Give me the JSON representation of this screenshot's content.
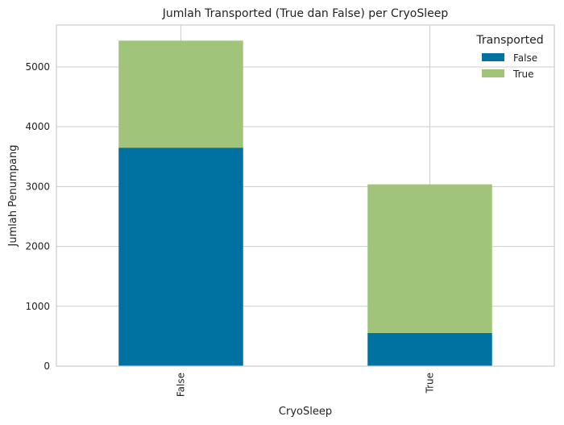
{
  "chart_data": {
    "type": "bar",
    "stacked": true,
    "title": "Jumlah Transported (True dan False) per CryoSleep",
    "xlabel": "CryoSleep",
    "ylabel": "Jumlah Penumpang",
    "categories": [
      "False",
      "True"
    ],
    "series": [
      {
        "name": "False",
        "values": [
          3650,
          554
        ],
        "color": "#0072A2"
      },
      {
        "name": "True",
        "values": [
          1789,
          2483
        ],
        "color": "#A0C47A"
      }
    ],
    "ylim": [
      0,
      5700
    ],
    "yticks": [
      0,
      1000,
      2000,
      3000,
      4000,
      5000
    ],
    "grid": true,
    "legend": {
      "title": "Transported",
      "placement": "top-right"
    },
    "colors": {
      "grid": "#CCCCCC",
      "axes": "#CCCCCC",
      "background": "#FFFFFF"
    }
  }
}
